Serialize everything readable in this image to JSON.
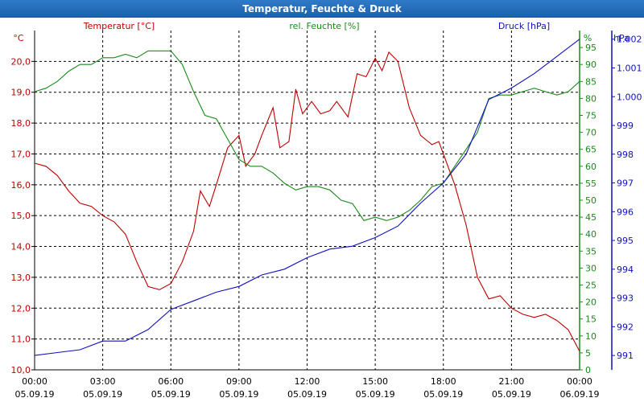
{
  "window_title": "Temperatur, Feuchte & Druck",
  "colors": {
    "temperature": "#c00000",
    "humidity": "#1a8a1a",
    "pressure": "#1010c0",
    "titlebar": "#1c5fa8",
    "grid": "#000000"
  },
  "chart_data": {
    "type": "line",
    "title": "Temperatur, Feuchte & Druck",
    "grid": true,
    "x_ticks": [
      {
        "time": "00:00",
        "date": "05.09.19"
      },
      {
        "time": "03:00",
        "date": "05.09.19"
      },
      {
        "time": "06:00",
        "date": "05.09.19"
      },
      {
        "time": "09:00",
        "date": "05.09.19"
      },
      {
        "time": "12:00",
        "date": "05.09.19"
      },
      {
        "time": "15:00",
        "date": "05.09.19"
      },
      {
        "time": "18:00",
        "date": "05.09.19"
      },
      {
        "time": "21:00",
        "date": "05.09.19"
      },
      {
        "time": "00:00",
        "date": "06.09.19"
      }
    ],
    "axes": {
      "temperature": {
        "label": "Temperatur [°C]",
        "unit": "°C",
        "range": [
          10,
          21
        ],
        "ticks": [
          "10,0",
          "11,0",
          "12,0",
          "13,0",
          "14,0",
          "15,0",
          "16,0",
          "17,0",
          "18,0",
          "19,0",
          "20,0"
        ]
      },
      "humidity": {
        "label": "rel. Feuchte [%]",
        "unit": "%",
        "range": [
          0,
          100
        ],
        "ticks": [
          "0",
          "5",
          "10",
          "15",
          "20",
          "25",
          "30",
          "35",
          "40",
          "45",
          "50",
          "55",
          "60",
          "65",
          "70",
          "75",
          "80",
          "85",
          "90",
          "95"
        ]
      },
      "pressure": {
        "label": "Druck [hPa]",
        "unit": "hPa",
        "range": [
          990.5,
          1002.3
        ],
        "ticks": [
          "991",
          "992",
          "993",
          "994",
          "995",
          "996",
          "997",
          "998",
          "999",
          "1.000",
          "1.001",
          "1.002"
        ]
      }
    },
    "series": [
      {
        "name": "Temperatur [°C]",
        "axis": "temperature",
        "color": "#c00000",
        "points": [
          [
            0,
            16.7
          ],
          [
            0.5,
            16.6
          ],
          [
            1,
            16.3
          ],
          [
            1.5,
            15.8
          ],
          [
            2,
            15.4
          ],
          [
            2.5,
            15.3
          ],
          [
            3,
            15.0
          ],
          [
            3.5,
            14.8
          ],
          [
            4,
            14.4
          ],
          [
            4.5,
            13.5
          ],
          [
            5,
            12.7
          ],
          [
            5.5,
            12.6
          ],
          [
            6,
            12.8
          ],
          [
            6.5,
            13.5
          ],
          [
            7,
            14.5
          ],
          [
            7.3,
            15.8
          ],
          [
            7.7,
            15.3
          ],
          [
            8,
            16.0
          ],
          [
            8.5,
            17.2
          ],
          [
            9,
            17.6
          ],
          [
            9.3,
            16.6
          ],
          [
            9.7,
            17.0
          ],
          [
            10,
            17.6
          ],
          [
            10.5,
            18.5
          ],
          [
            10.8,
            17.2
          ],
          [
            11.2,
            17.4
          ],
          [
            11.5,
            19.1
          ],
          [
            11.8,
            18.3
          ],
          [
            12.2,
            18.7
          ],
          [
            12.6,
            18.3
          ],
          [
            13,
            18.4
          ],
          [
            13.3,
            18.7
          ],
          [
            13.8,
            18.2
          ],
          [
            14.2,
            19.6
          ],
          [
            14.6,
            19.5
          ],
          [
            15,
            20.1
          ],
          [
            15.3,
            19.7
          ],
          [
            15.6,
            20.3
          ],
          [
            16,
            20.0
          ],
          [
            16.5,
            18.5
          ],
          [
            17,
            17.6
          ],
          [
            17.5,
            17.3
          ],
          [
            17.8,
            17.4
          ],
          [
            18,
            17.0
          ],
          [
            18.5,
            16.0
          ],
          [
            19,
            14.7
          ],
          [
            19.5,
            13.0
          ],
          [
            20,
            12.3
          ],
          [
            20.5,
            12.4
          ],
          [
            21,
            12.0
          ],
          [
            21.5,
            11.8
          ],
          [
            22,
            11.7
          ],
          [
            22.5,
            11.8
          ],
          [
            23,
            11.6
          ],
          [
            23.5,
            11.3
          ],
          [
            24,
            10.6
          ]
        ]
      },
      {
        "name": "rel. Feuchte [%]",
        "axis": "humidity",
        "color": "#1a8a1a",
        "points": [
          [
            0,
            82
          ],
          [
            0.5,
            83
          ],
          [
            1,
            85
          ],
          [
            1.5,
            88
          ],
          [
            2,
            90
          ],
          [
            2.5,
            90
          ],
          [
            3,
            92
          ],
          [
            3.5,
            92
          ],
          [
            4,
            93
          ],
          [
            4.5,
            92
          ],
          [
            5,
            94
          ],
          [
            5.5,
            94
          ],
          [
            6,
            94
          ],
          [
            6.5,
            90
          ],
          [
            7,
            82
          ],
          [
            7.5,
            75
          ],
          [
            8,
            74
          ],
          [
            8.5,
            68
          ],
          [
            9,
            62
          ],
          [
            9.5,
            60
          ],
          [
            10,
            60
          ],
          [
            10.5,
            58
          ],
          [
            11,
            55
          ],
          [
            11.5,
            53
          ],
          [
            12,
            54
          ],
          [
            12.5,
            54
          ],
          [
            13,
            53
          ],
          [
            13.5,
            50
          ],
          [
            14,
            49
          ],
          [
            14.5,
            44
          ],
          [
            15,
            45
          ],
          [
            15.5,
            44
          ],
          [
            16,
            45
          ],
          [
            16.5,
            47
          ],
          [
            17,
            50
          ],
          [
            17.5,
            54
          ],
          [
            18,
            55
          ],
          [
            18.5,
            60
          ],
          [
            19,
            65
          ],
          [
            19.5,
            70
          ],
          [
            20,
            80
          ],
          [
            20.5,
            81
          ],
          [
            21,
            81
          ],
          [
            21.5,
            82
          ],
          [
            22,
            83
          ],
          [
            22.5,
            82
          ],
          [
            23,
            81
          ],
          [
            23.5,
            82
          ],
          [
            24,
            85
          ]
        ]
      },
      {
        "name": "Druck [hPa]",
        "axis": "pressure",
        "color": "#1010c0",
        "points": [
          [
            0,
            991.0
          ],
          [
            1,
            991.1
          ],
          [
            2,
            991.2
          ],
          [
            3,
            991.5
          ],
          [
            4,
            991.5
          ],
          [
            5,
            991.9
          ],
          [
            6,
            992.6
          ],
          [
            7,
            992.9
          ],
          [
            8,
            993.2
          ],
          [
            9,
            993.4
          ],
          [
            10,
            993.8
          ],
          [
            11,
            994.0
          ],
          [
            12,
            994.4
          ],
          [
            13,
            994.7
          ],
          [
            14,
            994.8
          ],
          [
            15,
            995.1
          ],
          [
            16,
            995.5
          ],
          [
            17,
            996.3
          ],
          [
            18,
            997.0
          ],
          [
            19,
            998.0
          ],
          [
            20,
            999.9
          ],
          [
            21,
            1000.3
          ],
          [
            22,
            1000.8
          ],
          [
            23,
            1001.4
          ],
          [
            24,
            1002.0
          ]
        ]
      }
    ]
  }
}
